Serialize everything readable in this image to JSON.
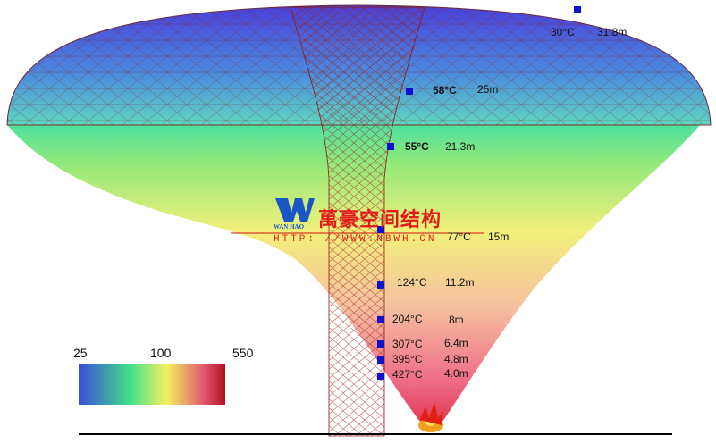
{
  "measurements": [
    {
      "temp": "30°C",
      "height": "31.8m"
    },
    {
      "temp": "58°C",
      "height": "25m"
    },
    {
      "temp": "55°C",
      "height": "21.3m"
    },
    {
      "temp": "77°C",
      "height": "15m"
    },
    {
      "temp": "124°C",
      "height": "11.2m"
    },
    {
      "temp": "204°C",
      "height": "8m"
    },
    {
      "temp": "307°C",
      "height": "6.4m"
    },
    {
      "temp": "395°C",
      "height": "4.8m"
    },
    {
      "temp": "427°C",
      "height": "4.0m"
    }
  ],
  "colorbar": {
    "min": "25",
    "mid": "100",
    "max": "550",
    "colors": [
      "#3a4fd8",
      "#41e08a",
      "#f4f060",
      "#e25a70",
      "#b01020"
    ]
  },
  "watermark": {
    "brand_cn": "萬豪空间结构",
    "brand_en": "WAN HAO",
    "url": "HTTP: //WWW.NBWH.CN"
  },
  "colors": {
    "marker": "#1010d0",
    "mesh": "#8b1a1a"
  }
}
